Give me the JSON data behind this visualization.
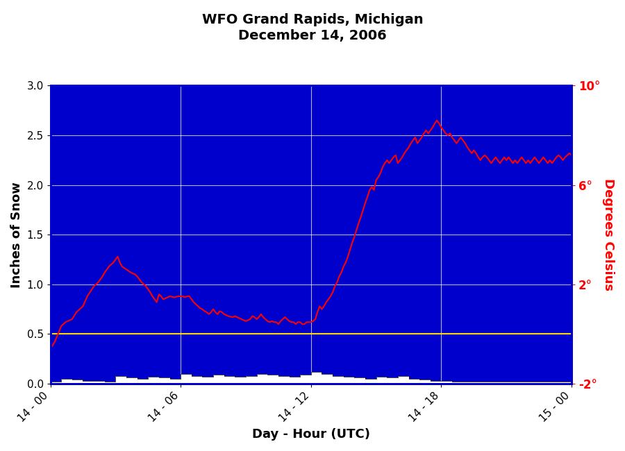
{
  "title_line1": "WFO Grand Rapids, Michigan",
  "title_line2": "December 14, 2006",
  "xlabel": "Day - Hour (UTC)",
  "ylabel_left": "Inches of Snow",
  "ylabel_right": "Degrees Celsius",
  "plot_bg_color": "#0000CC",
  "fig_bg_color": "#FFFFFF",
  "border_color": "#0000CC",
  "ylim_left": [
    0.0,
    3.0
  ],
  "ylim_right": [
    -2,
    10
  ],
  "yticks_left": [
    0.0,
    0.5,
    1.0,
    1.5,
    2.0,
    2.5,
    3.0
  ],
  "yticks_right_vals": [
    -2,
    2,
    6,
    10
  ],
  "yticks_right_labels": [
    "-2°",
    "2°",
    "6°",
    "10°"
  ],
  "xtick_positions": [
    0,
    6,
    12,
    18,
    24
  ],
  "xtick_labels": [
    "14 - 00",
    "14 - 06",
    "14 - 12",
    "14 - 18",
    "15 - 00"
  ],
  "yellow_line_y": 0.5,
  "snow_color": "#FFFFFF",
  "temp_color": "#FF0000",
  "snow_depth": [
    [
      0,
      0.02
    ],
    [
      0.5,
      0.05
    ],
    [
      1,
      0.04
    ],
    [
      1.5,
      0.03
    ],
    [
      2,
      0.03
    ],
    [
      2.5,
      0.02
    ],
    [
      3,
      0.08
    ],
    [
      3.5,
      0.06
    ],
    [
      4,
      0.05
    ],
    [
      4.5,
      0.07
    ],
    [
      5,
      0.06
    ],
    [
      5.5,
      0.05
    ],
    [
      6,
      0.1
    ],
    [
      6.5,
      0.08
    ],
    [
      7,
      0.07
    ],
    [
      7.5,
      0.09
    ],
    [
      8,
      0.08
    ],
    [
      8.5,
      0.07
    ],
    [
      9,
      0.08
    ],
    [
      9.5,
      0.1
    ],
    [
      10,
      0.09
    ],
    [
      10.5,
      0.08
    ],
    [
      11,
      0.07
    ],
    [
      11.5,
      0.09
    ],
    [
      12,
      0.12
    ],
    [
      12.5,
      0.1
    ],
    [
      13,
      0.08
    ],
    [
      13.5,
      0.07
    ],
    [
      14,
      0.06
    ],
    [
      14.5,
      0.05
    ],
    [
      15,
      0.07
    ],
    [
      15.5,
      0.06
    ],
    [
      16,
      0.08
    ],
    [
      16.5,
      0.05
    ],
    [
      17,
      0.04
    ],
    [
      17.5,
      0.03
    ],
    [
      18,
      0.03
    ],
    [
      18.5,
      0.02
    ],
    [
      19,
      0.02
    ],
    [
      19.5,
      0.02
    ],
    [
      20,
      0.02
    ],
    [
      20.5,
      0.02
    ],
    [
      21,
      0.02
    ],
    [
      21.5,
      0.02
    ],
    [
      22,
      0.02
    ],
    [
      22.5,
      0.02
    ],
    [
      23,
      0.02
    ],
    [
      23.5,
      0.02
    ],
    [
      24,
      0.02
    ]
  ],
  "temp_data": [
    [
      0,
      0.35
    ],
    [
      0.2,
      0.42
    ],
    [
      0.5,
      0.58
    ],
    [
      0.7,
      0.62
    ],
    [
      1.0,
      0.65
    ],
    [
      1.2,
      0.72
    ],
    [
      1.5,
      0.78
    ],
    [
      1.7,
      0.88
    ],
    [
      2.0,
      0.98
    ],
    [
      2.2,
      1.02
    ],
    [
      2.4,
      1.08
    ],
    [
      2.5,
      1.12
    ],
    [
      2.7,
      1.18
    ],
    [
      2.9,
      1.22
    ],
    [
      3.0,
      1.25
    ],
    [
      3.1,
      1.28
    ],
    [
      3.2,
      1.22
    ],
    [
      3.3,
      1.18
    ],
    [
      3.5,
      1.15
    ],
    [
      3.7,
      1.12
    ],
    [
      3.9,
      1.1
    ],
    [
      4.0,
      1.08
    ],
    [
      4.1,
      1.05
    ],
    [
      4.2,
      1.02
    ],
    [
      4.3,
      1.0
    ],
    [
      4.4,
      0.98
    ],
    [
      4.5,
      0.95
    ],
    [
      4.6,
      0.92
    ],
    [
      4.7,
      0.88
    ],
    [
      4.8,
      0.85
    ],
    [
      4.9,
      0.82
    ],
    [
      5.0,
      0.9
    ],
    [
      5.1,
      0.88
    ],
    [
      5.2,
      0.85
    ],
    [
      5.5,
      0.88
    ],
    [
      5.7,
      0.87
    ],
    [
      5.9,
      0.88
    ],
    [
      6.0,
      0.88
    ],
    [
      6.1,
      0.88
    ],
    [
      6.2,
      0.87
    ],
    [
      6.3,
      0.88
    ],
    [
      6.4,
      0.88
    ],
    [
      6.5,
      0.85
    ],
    [
      6.6,
      0.82
    ],
    [
      6.7,
      0.8
    ],
    [
      6.8,
      0.78
    ],
    [
      6.9,
      0.76
    ],
    [
      7.0,
      0.75
    ],
    [
      7.1,
      0.73
    ],
    [
      7.2,
      0.72
    ],
    [
      7.3,
      0.7
    ],
    [
      7.4,
      0.72
    ],
    [
      7.5,
      0.75
    ],
    [
      7.6,
      0.72
    ],
    [
      7.7,
      0.7
    ],
    [
      7.8,
      0.73
    ],
    [
      7.9,
      0.72
    ],
    [
      8.0,
      0.7
    ],
    [
      8.2,
      0.68
    ],
    [
      8.4,
      0.67
    ],
    [
      8.5,
      0.68
    ],
    [
      8.6,
      0.67
    ],
    [
      8.8,
      0.65
    ],
    [
      9.0,
      0.63
    ],
    [
      9.2,
      0.65
    ],
    [
      9.3,
      0.68
    ],
    [
      9.4,
      0.67
    ],
    [
      9.5,
      0.65
    ],
    [
      9.6,
      0.67
    ],
    [
      9.7,
      0.7
    ],
    [
      9.8,
      0.67
    ],
    [
      9.9,
      0.65
    ],
    [
      10.0,
      0.63
    ],
    [
      10.1,
      0.62
    ],
    [
      10.2,
      0.63
    ],
    [
      10.3,
      0.62
    ],
    [
      10.4,
      0.62
    ],
    [
      10.5,
      0.6
    ],
    [
      10.6,
      0.63
    ],
    [
      10.7,
      0.65
    ],
    [
      10.8,
      0.67
    ],
    [
      10.9,
      0.65
    ],
    [
      11.0,
      0.63
    ],
    [
      11.1,
      0.62
    ],
    [
      11.2,
      0.62
    ],
    [
      11.3,
      0.6
    ],
    [
      11.4,
      0.62
    ],
    [
      11.5,
      0.62
    ],
    [
      11.6,
      0.6
    ],
    [
      11.7,
      0.6
    ],
    [
      11.8,
      0.62
    ],
    [
      11.9,
      0.62
    ],
    [
      12.0,
      0.62
    ],
    [
      12.1,
      0.63
    ],
    [
      12.2,
      0.65
    ],
    [
      12.3,
      0.72
    ],
    [
      12.4,
      0.78
    ],
    [
      12.5,
      0.75
    ],
    [
      12.6,
      0.78
    ],
    [
      12.7,
      0.82
    ],
    [
      12.8,
      0.85
    ],
    [
      12.9,
      0.88
    ],
    [
      13.0,
      0.92
    ],
    [
      13.1,
      0.98
    ],
    [
      13.2,
      1.02
    ],
    [
      13.3,
      1.08
    ],
    [
      13.4,
      1.12
    ],
    [
      13.5,
      1.18
    ],
    [
      13.6,
      1.22
    ],
    [
      13.7,
      1.28
    ],
    [
      13.8,
      1.35
    ],
    [
      13.9,
      1.42
    ],
    [
      14.0,
      1.48
    ],
    [
      14.1,
      1.55
    ],
    [
      14.2,
      1.62
    ],
    [
      14.3,
      1.68
    ],
    [
      14.4,
      1.75
    ],
    [
      14.5,
      1.82
    ],
    [
      14.6,
      1.88
    ],
    [
      14.7,
      1.95
    ],
    [
      14.8,
      1.98
    ],
    [
      14.9,
      1.95
    ],
    [
      15.0,
      2.05
    ],
    [
      15.1,
      2.08
    ],
    [
      15.2,
      2.12
    ],
    [
      15.3,
      2.18
    ],
    [
      15.4,
      2.22
    ],
    [
      15.5,
      2.25
    ],
    [
      15.6,
      2.22
    ],
    [
      15.7,
      2.25
    ],
    [
      15.8,
      2.28
    ],
    [
      15.9,
      2.3
    ],
    [
      16.0,
      2.22
    ],
    [
      16.1,
      2.25
    ],
    [
      16.2,
      2.28
    ],
    [
      16.3,
      2.32
    ],
    [
      16.4,
      2.35
    ],
    [
      16.5,
      2.38
    ],
    [
      16.6,
      2.42
    ],
    [
      16.7,
      2.45
    ],
    [
      16.8,
      2.48
    ],
    [
      16.9,
      2.42
    ],
    [
      17.0,
      2.45
    ],
    [
      17.1,
      2.48
    ],
    [
      17.2,
      2.52
    ],
    [
      17.3,
      2.55
    ],
    [
      17.4,
      2.52
    ],
    [
      17.5,
      2.55
    ],
    [
      17.6,
      2.58
    ],
    [
      17.7,
      2.62
    ],
    [
      17.8,
      2.65
    ],
    [
      17.9,
      2.62
    ],
    [
      18.0,
      2.58
    ],
    [
      18.1,
      2.55
    ],
    [
      18.2,
      2.52
    ],
    [
      18.3,
      2.5
    ],
    [
      18.4,
      2.52
    ],
    [
      18.5,
      2.48
    ],
    [
      18.6,
      2.45
    ],
    [
      18.7,
      2.42
    ],
    [
      18.8,
      2.45
    ],
    [
      18.9,
      2.48
    ],
    [
      19.0,
      2.45
    ],
    [
      19.1,
      2.42
    ],
    [
      19.2,
      2.38
    ],
    [
      19.3,
      2.35
    ],
    [
      19.4,
      2.32
    ],
    [
      19.5,
      2.35
    ],
    [
      19.6,
      2.32
    ],
    [
      19.7,
      2.28
    ],
    [
      19.8,
      2.25
    ],
    [
      19.9,
      2.28
    ],
    [
      20.0,
      2.3
    ],
    [
      20.1,
      2.28
    ],
    [
      20.2,
      2.25
    ],
    [
      20.3,
      2.22
    ],
    [
      20.4,
      2.25
    ],
    [
      20.5,
      2.28
    ],
    [
      20.6,
      2.25
    ],
    [
      20.7,
      2.22
    ],
    [
      20.8,
      2.25
    ],
    [
      20.9,
      2.28
    ],
    [
      21.0,
      2.25
    ],
    [
      21.1,
      2.28
    ],
    [
      21.2,
      2.25
    ],
    [
      21.3,
      2.22
    ],
    [
      21.4,
      2.25
    ],
    [
      21.5,
      2.22
    ],
    [
      21.6,
      2.25
    ],
    [
      21.7,
      2.28
    ],
    [
      21.8,
      2.25
    ],
    [
      21.9,
      2.22
    ],
    [
      22.0,
      2.25
    ],
    [
      22.1,
      2.22
    ],
    [
      22.2,
      2.25
    ],
    [
      22.3,
      2.28
    ],
    [
      22.4,
      2.25
    ],
    [
      22.5,
      2.22
    ],
    [
      22.6,
      2.25
    ],
    [
      22.7,
      2.28
    ],
    [
      22.8,
      2.25
    ],
    [
      22.9,
      2.22
    ],
    [
      23.0,
      2.25
    ],
    [
      23.1,
      2.22
    ],
    [
      23.2,
      2.25
    ],
    [
      23.3,
      2.28
    ],
    [
      23.4,
      2.3
    ],
    [
      23.5,
      2.28
    ],
    [
      23.6,
      2.25
    ],
    [
      23.7,
      2.28
    ],
    [
      23.8,
      2.3
    ],
    [
      23.9,
      2.32
    ],
    [
      24.0,
      2.3
    ]
  ]
}
